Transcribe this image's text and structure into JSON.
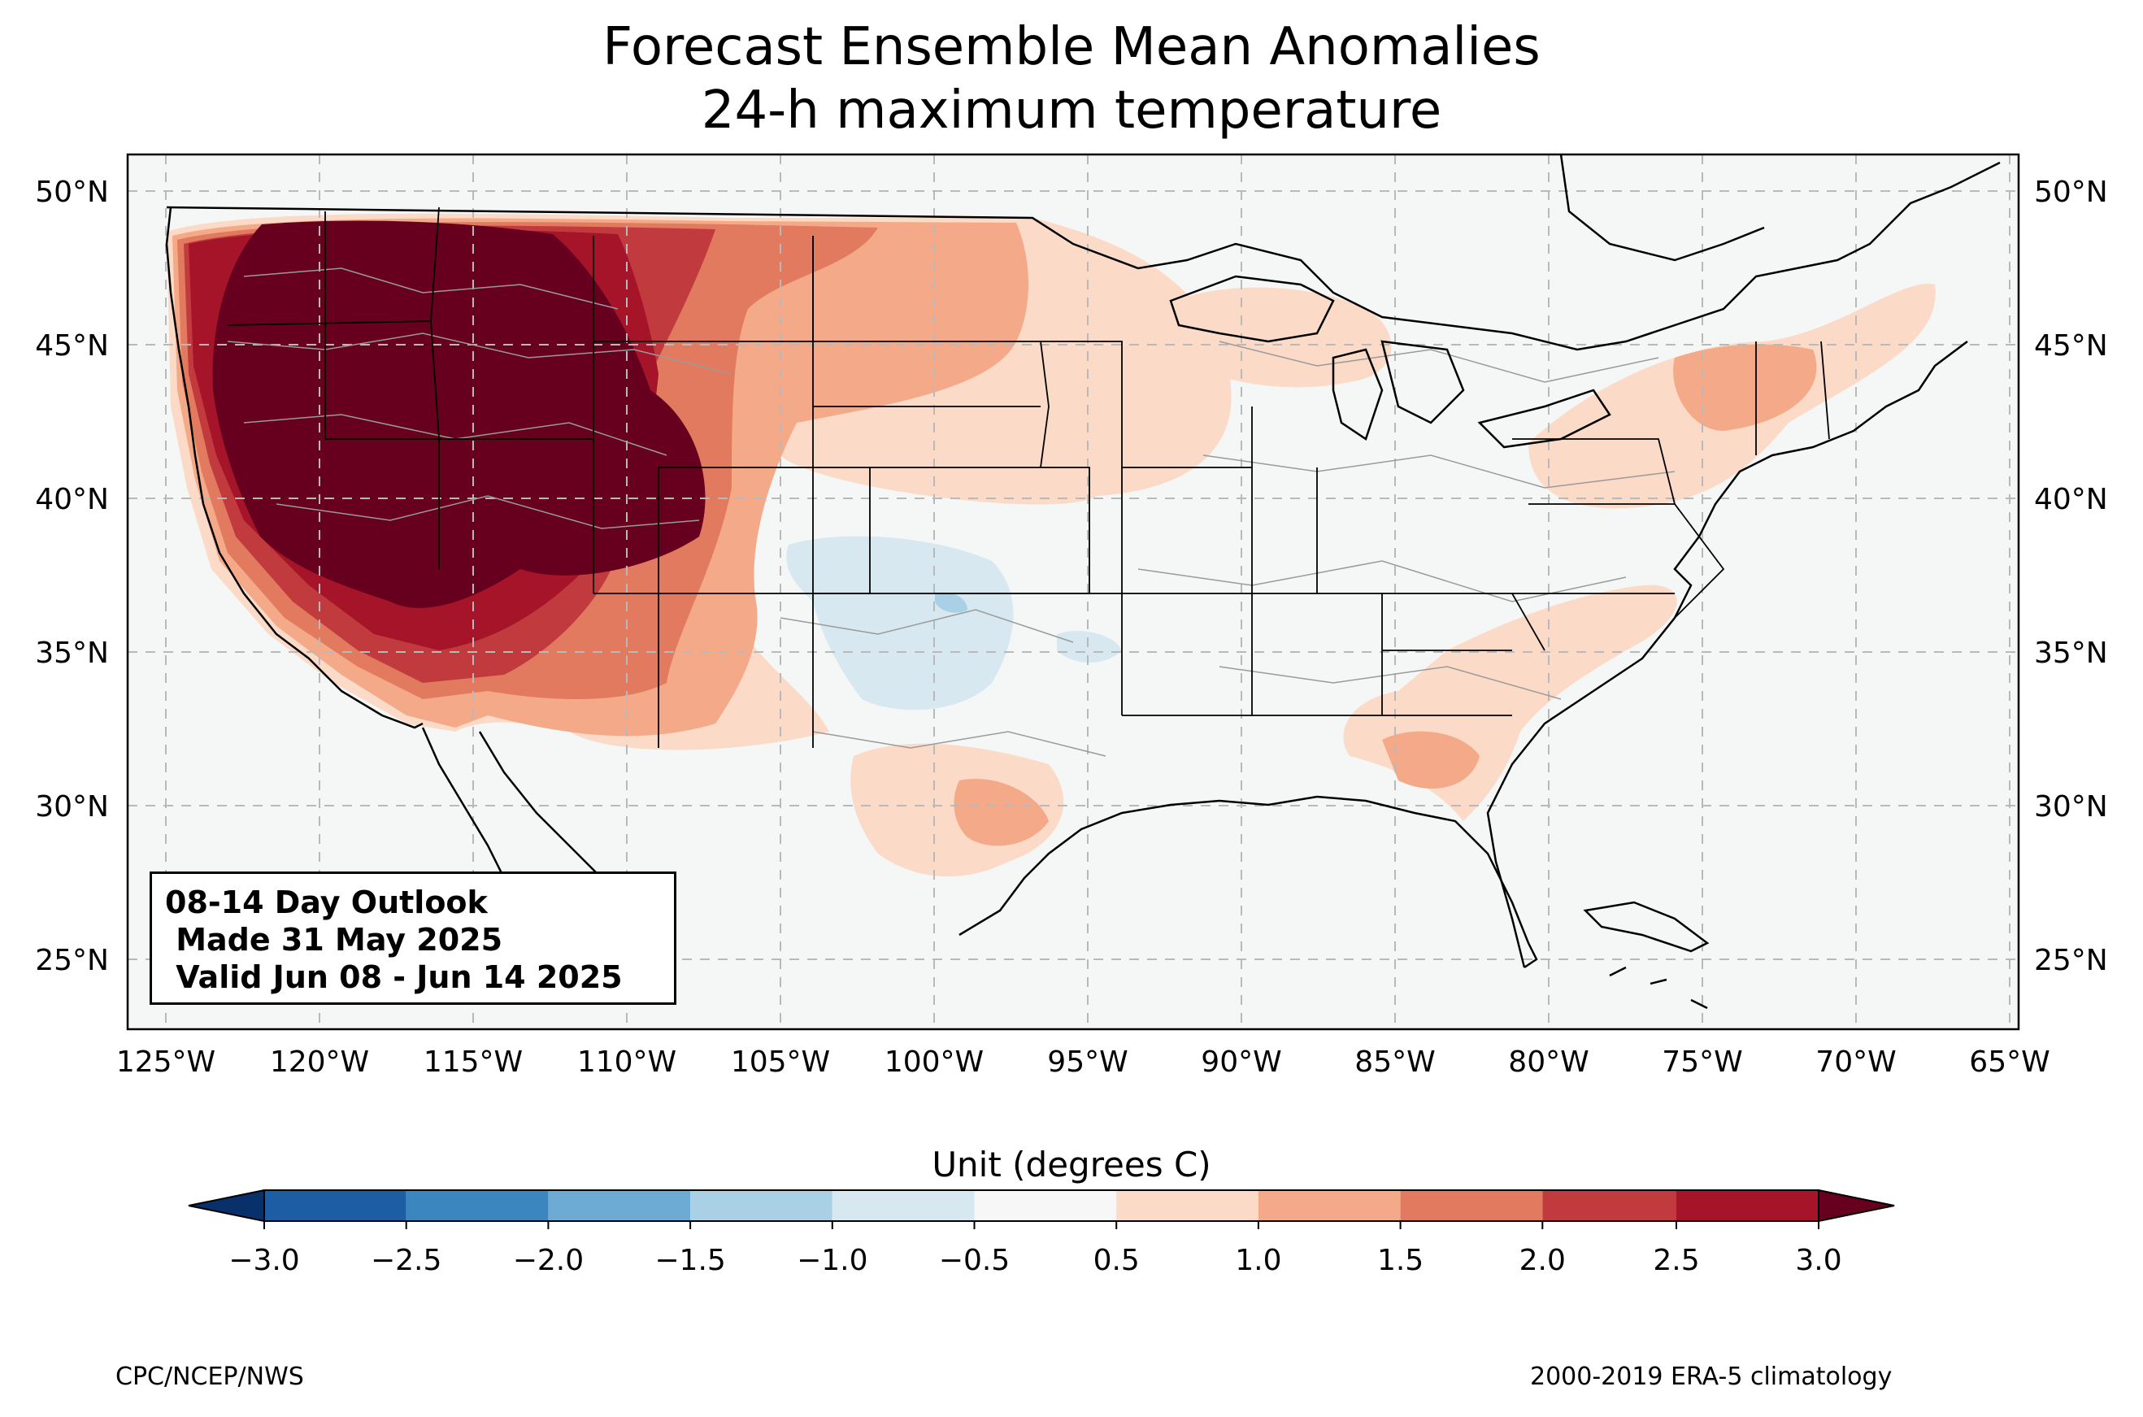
{
  "title": {
    "line1": "Forecast Ensemble Mean Anomalies",
    "line2": "24-h maximum temperature"
  },
  "map": {
    "lon_range": [
      -126.3,
      -64.9
    ],
    "lat_range": [
      22.8,
      51.2
    ],
    "lon_ticks": [
      "125°W",
      "120°W",
      "115°W",
      "110°W",
      "105°W",
      "100°W",
      "95°W",
      "90°W",
      "85°W",
      "80°W",
      "75°W",
      "70°W",
      "65°W"
    ],
    "lat_ticks": [
      "25°N",
      "30°N",
      "35°N",
      "40°N",
      "45°N",
      "50°N"
    ],
    "gridlines": true,
    "colors": {
      "land": "#f5f6f6",
      "ocean": "#f5f6f6",
      "coastline": "#000000",
      "state_lines": "#000000",
      "county_lines": "#9a9a9a"
    }
  },
  "outlook": {
    "line1": "08-14 Day Outlook",
    "line2": " Made 31 May 2025",
    "line3": " Valid Jun 08 - Jun 14 2025"
  },
  "colorbar": {
    "title": "Unit (degrees C)",
    "labels": [
      "−3.0",
      "−2.5",
      "−2.0",
      "−1.5",
      "−1.0",
      "−0.5",
      "0.5",
      "1.0",
      "1.5",
      "2.0",
      "2.5",
      "3.0"
    ],
    "colors": [
      "#1d5da3",
      "#3c86c0",
      "#6eabd4",
      "#a9d0e4",
      "#d7e8f0",
      "#f7f7f7",
      "#fbdac8",
      "#f4aa88",
      "#e17a5e",
      "#c13b3e",
      "#a51428"
    ],
    "extend_low_color": "#08306b",
    "extend_high_color": "#67001f"
  },
  "footer": {
    "left": "CPC/NCEP/NWS",
    "right": "2000-2019 ERA-5 climatology"
  }
}
